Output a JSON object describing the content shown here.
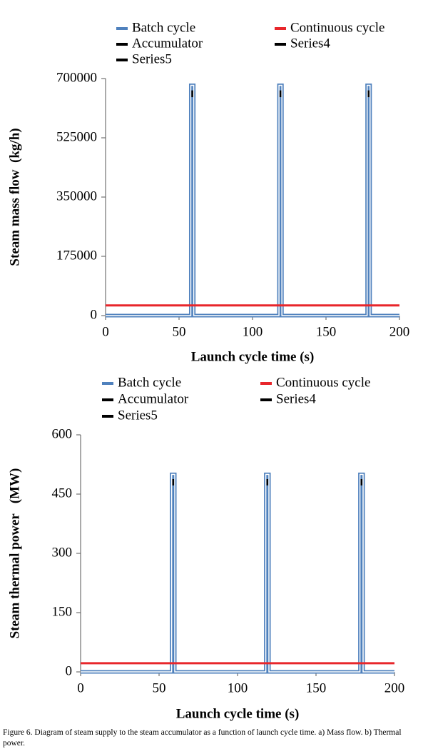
{
  "chart_data": [
    {
      "type": "line",
      "xlabel": "Launch cycle time (s)",
      "ylabel": "Steam mass flow  (kg/h)",
      "xlim": [
        0,
        200
      ],
      "xticks": [
        0,
        50,
        100,
        150,
        200
      ],
      "ylim": [
        0,
        700000
      ],
      "yticks": [
        0,
        175000,
        350000,
        525000,
        700000
      ],
      "grid": false,
      "series": [
        {
          "name": "Batch cycle",
          "color": "#4f81bd",
          "x": [
            0,
            58,
            58,
            60,
            60,
            118,
            118,
            120,
            120,
            178,
            178,
            180,
            180,
            200
          ],
          "values": [
            0,
            0,
            680000,
            680000,
            0,
            0,
            680000,
            680000,
            0,
            0,
            680000,
            680000,
            0,
            0
          ]
        },
        {
          "name": "Continuous cycle",
          "color": "#e8262b",
          "x": [
            0,
            200
          ],
          "values": [
            30000,
            30000
          ]
        },
        {
          "name": "Accumulator",
          "color": "#000000",
          "x": [
            59,
            59
          ],
          "values": [
            645000,
            665000
          ]
        },
        {
          "name": "Series4",
          "color": "#000000",
          "x": [
            119,
            119
          ],
          "values": [
            645000,
            665000
          ]
        },
        {
          "name": "Series5",
          "color": "#000000",
          "x": [
            179,
            179
          ],
          "values": [
            645000,
            665000
          ]
        }
      ]
    },
    {
      "type": "line",
      "xlabel": "Launch cycle time (s)",
      "ylabel": "Steam thermal power   (MW)",
      "xlim": [
        0,
        200
      ],
      "xticks": [
        0,
        50,
        100,
        150,
        200
      ],
      "ylim": [
        0,
        600
      ],
      "yticks": [
        0,
        150,
        300,
        450,
        600
      ],
      "grid": false,
      "series": [
        {
          "name": "Batch cycle",
          "color": "#4f81bd",
          "x": [
            0,
            58,
            58,
            60,
            60,
            118,
            118,
            120,
            120,
            178,
            178,
            180,
            180,
            200
          ],
          "values": [
            0,
            0,
            500,
            500,
            0,
            0,
            500,
            500,
            0,
            0,
            500,
            500,
            0,
            0
          ]
        },
        {
          "name": "Continuous cycle",
          "color": "#e8262b",
          "x": [
            0,
            200
          ],
          "values": [
            22,
            22
          ]
        },
        {
          "name": "Accumulator",
          "color": "#000000",
          "x": [
            59,
            59
          ],
          "values": [
            472,
            488
          ]
        },
        {
          "name": "Series4",
          "color": "#000000",
          "x": [
            119,
            119
          ],
          "values": [
            472,
            488
          ]
        },
        {
          "name": "Series5",
          "color": "#000000",
          "x": [
            179,
            179
          ],
          "values": [
            472,
            488
          ]
        }
      ]
    }
  ],
  "caption": "Figure 6. Diagram of steam supply to the steam accumulator as a function of launch cycle time. a) Mass flow. b) Thermal power."
}
